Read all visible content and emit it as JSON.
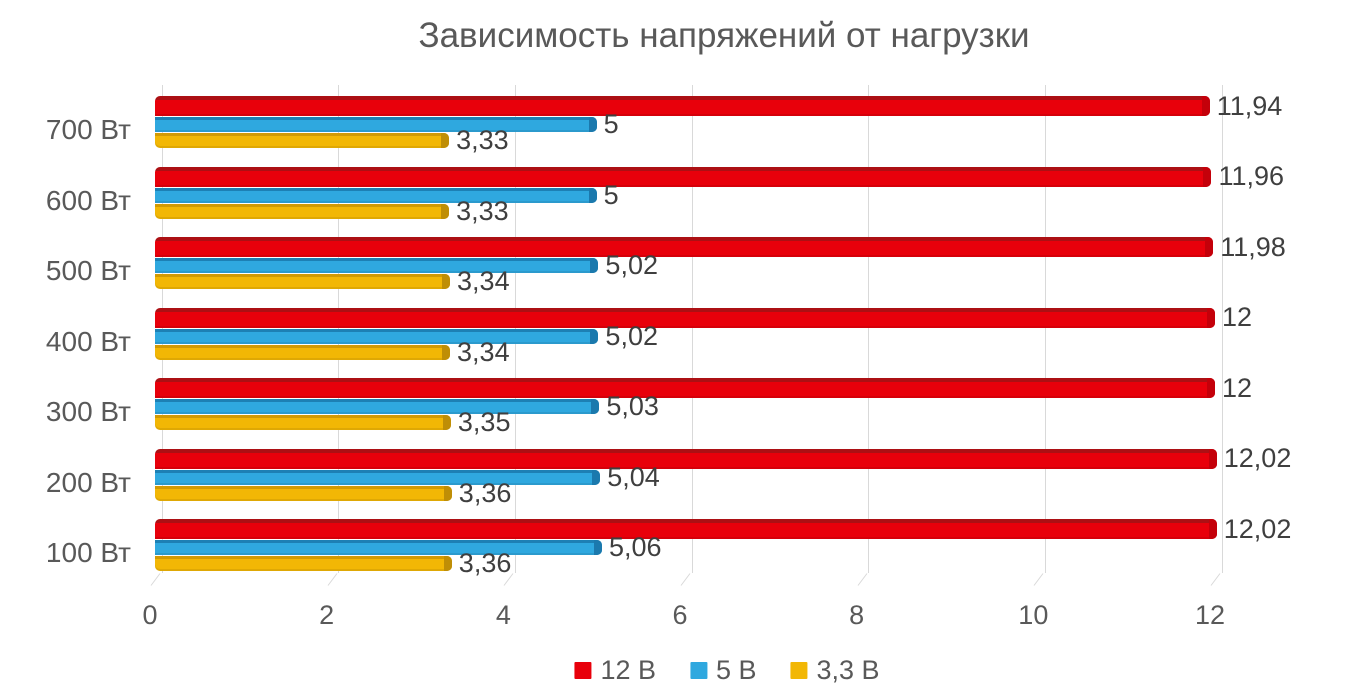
{
  "chart_data": {
    "type": "bar",
    "orientation": "horizontal",
    "title": "Зависимость напряжений от нагрузки",
    "categories": [
      "700 Вт",
      "600 Вт",
      "500 Вт",
      "400 Вт",
      "300 Вт",
      "200 Вт",
      "100 Вт"
    ],
    "series": [
      {
        "name": "12 В",
        "color": "#E8000B",
        "edge_color": "#AC1014",
        "cap_color": "#C4000A",
        "values": [
          11.94,
          11.96,
          11.98,
          12,
          12,
          12.02,
          12.02
        ],
        "labels": [
          "11,94",
          "11,96",
          "11,98",
          "12",
          "12",
          "12,02",
          "12,02"
        ]
      },
      {
        "name": "5 В",
        "color": "#2FA8DF",
        "edge_color": "#1D80B4",
        "cap_color": "#1B79AD",
        "values": [
          5,
          5,
          5.02,
          5.02,
          5.03,
          5.04,
          5.06
        ],
        "labels": [
          "5",
          "5",
          "5,02",
          "5,02",
          "5,03",
          "5,04",
          "5,06"
        ]
      },
      {
        "name": "3,3 В",
        "color": "#F2B705",
        "edge_color": "#D29A04",
        "cap_color": "#BF8E06",
        "values": [
          3.33,
          3.33,
          3.34,
          3.34,
          3.35,
          3.36,
          3.36
        ],
        "labels": [
          "3,33",
          "3,33",
          "3,34",
          "3,34",
          "3,35",
          "3,36",
          "3,36"
        ]
      }
    ],
    "x_ticks": [
      "0",
      "2",
      "4",
      "6",
      "8",
      "10",
      "12"
    ],
    "xlim": [
      0,
      12
    ],
    "grid": true,
    "legend_position": "bottom",
    "colors": {
      "axis_text": "#595959",
      "value_text": "#3F3F3F",
      "gridline": "#D9D9D9",
      "background": "#FFFFFF"
    }
  }
}
